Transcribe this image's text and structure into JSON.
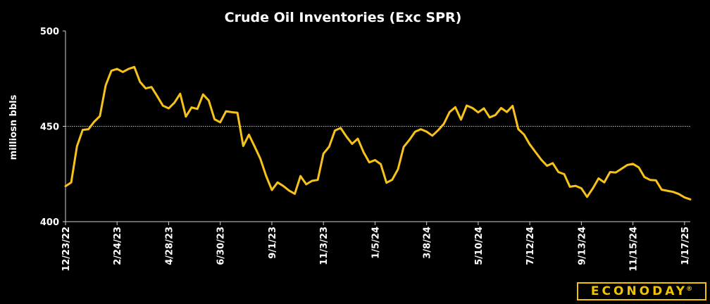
{
  "chart_data": {
    "type": "line",
    "title": "Crude Oil Inventories (Exc SPR)",
    "ylabel": "milliosn bbls",
    "xlabel": "",
    "ylim": [
      400,
      500
    ],
    "yticks": [
      "400",
      "450",
      "500"
    ],
    "grid": "dashed horizontal line at 450",
    "line_color": "#f7c21a",
    "x_tick_labels": [
      "12/23/22",
      "2/24/23",
      "4/28/23",
      "6/30/23",
      "9/1/23",
      "11/3/23",
      "1/5/24",
      "3/8/24",
      "5/10/24",
      "7/12/24",
      "9/13/24",
      "11/15/24",
      "1/17/25"
    ],
    "series": [
      {
        "values": [
          418.6,
          420.6,
          439.6,
          448.1,
          448.5,
          452.4,
          455.3,
          471.4,
          479.1,
          480.1,
          478.5,
          480.1,
          481.1,
          473.3,
          469.9,
          470.6,
          465.8,
          460.8,
          459.4,
          462.4,
          467.1,
          455.1,
          459.9,
          459.1,
          466.7,
          463.5,
          453.7,
          452.1,
          457.9,
          457.4,
          457.1,
          439.7,
          445.6,
          439.4,
          432.9,
          424.0,
          416.6,
          420.6,
          418.7,
          416.3,
          414.6,
          423.9,
          419.6,
          421.4,
          421.9,
          435.7,
          439.3,
          447.8,
          449.1,
          444.7,
          440.8,
          443.5,
          436.4,
          431.1,
          432.3,
          430.1,
          420.4,
          422.0,
          427.5,
          439.2,
          442.9,
          447.2,
          448.5,
          447.2,
          445.1,
          447.9,
          451.3,
          457.4,
          460.0,
          453.5,
          460.9,
          459.6,
          457.3,
          459.4,
          454.7,
          455.9,
          459.6,
          457.5,
          460.7,
          448.5,
          445.7,
          440.5,
          436.5,
          432.5,
          429.3,
          430.7,
          426.0,
          424.9,
          418.3,
          418.8,
          417.5,
          413.0,
          417.5,
          422.7,
          420.6,
          426.0,
          425.8,
          427.7,
          429.7,
          430.3,
          428.5,
          423.4,
          421.9,
          421.7,
          416.8,
          416.2,
          415.6,
          414.5,
          412.7,
          411.7
        ]
      }
    ]
  },
  "branding": {
    "logo_text": "ECONODAY",
    "logo_mark": "®"
  }
}
